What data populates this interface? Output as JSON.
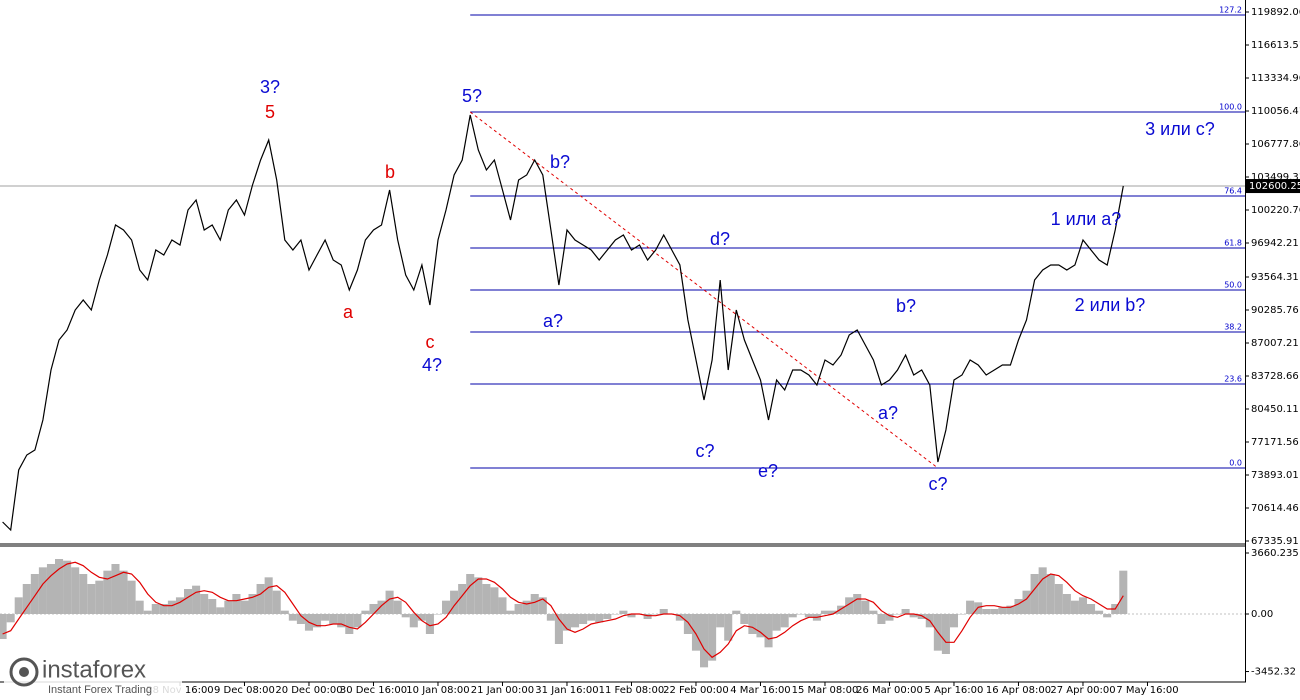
{
  "chart_data": [
    {
      "type": "line",
      "categories": [
        null,
        null,
        null,
        null,
        null,
        null,
        null,
        null,
        null,
        null,
        null,
        null,
        null,
        null,
        null,
        null,
        null,
        null,
        null,
        null,
        null,
        null,
        "28 Nov 16:00",
        null,
        null,
        null,
        null,
        null,
        null,
        null,
        "9 Dec 08:00",
        null,
        null,
        null,
        null,
        null,
        null,
        null,
        "20 Dec 00:00",
        null,
        null,
        null,
        null,
        null,
        null,
        null,
        "30 Dec 16:00",
        null,
        null,
        null,
        null,
        null,
        null,
        null,
        "10 Jan 08:00",
        null,
        null,
        null,
        null,
        null,
        null,
        null,
        "21 Jan 00:00",
        null,
        null,
        null,
        null,
        null,
        null,
        null,
        "31 Jan 16:00",
        null,
        null,
        null,
        null,
        null,
        null,
        null,
        "11 Feb 08:00",
        null,
        null,
        null,
        null,
        null,
        null,
        null,
        "22 Feb 00:00",
        null,
        null,
        null,
        null,
        null,
        null,
        null,
        "4 Mar 16:00",
        null,
        null,
        null,
        null,
        null,
        null,
        null,
        "15 Mar 08:00",
        null,
        null,
        null,
        null,
        null,
        null,
        null,
        "26 Mar 00:00",
        null,
        null,
        null,
        null,
        null,
        null,
        null,
        "5 Apr 16:00",
        null,
        null,
        null,
        null,
        null,
        null,
        null,
        "16 Apr 08:00",
        null,
        null,
        null,
        null,
        null,
        null,
        null,
        "27 Apr 00:00",
        null,
        null,
        null,
        null,
        null,
        null,
        null,
        "7 May 16:00",
        null,
        null,
        null,
        null,
        null,
        null,
        null
      ],
      "series": [
        {
          "color": "#000000",
          "values": [
            69223,
            68429,
            74390,
            75879,
            76376,
            79357,
            84324,
            87305,
            88298,
            90285,
            91279,
            90285,
            93266,
            95750,
            98730,
            98233,
            97240,
            94259,
            93266,
            96246,
            95750,
            97240,
            96743,
            100220,
            101214,
            98233,
            98730,
            97240,
            100220,
            101214,
            99724,
            102704,
            105188,
            107175,
            103201,
            97240,
            96246,
            97240,
            94259,
            95750,
            97240,
            95253,
            94756,
            92272,
            94259,
            97240,
            98233,
            98730,
            102207,
            97240,
            93763,
            92272,
            94756,
            90782,
            97240,
            100220,
            103698,
            105188,
            109659,
            106181,
            104194,
            105188,
            102207,
            99227,
            103201,
            103698,
            105188,
            103698,
            98233,
            92769,
            98233,
            97240,
            96743,
            96246,
            95253,
            96246,
            97240,
            97737,
            96246,
            96743,
            95253,
            96246,
            97737,
            96246,
            94756,
            89292,
            85318,
            81344,
            85318,
            93266,
            84324,
            90285,
            87305,
            85318,
            83331,
            79357,
            83331,
            82337,
            84324,
            84324,
            83828,
            82834,
            85318,
            84821,
            85815,
            87802,
            88298,
            86808,
            85318,
            82834,
            83331,
            84324,
            85815,
            83828,
            84324,
            82834,
            75181,
            78363,
            83331,
            83828,
            85318,
            84821,
            83828,
            84324,
            84821,
            84821,
            87305,
            89292,
            93266,
            94259,
            94756,
            94756,
            94259,
            94756,
            97240,
            96246,
            95253,
            94756,
            98233,
            102600.25,
            null,
            null,
            null,
            null,
            null,
            null,
            null,
            null,
            null,
            null
          ]
        }
      ],
      "ylim": [
        67137,
        121084
      ],
      "yticks": [
        119892.06,
        116613.51,
        113334.96,
        110056.41,
        106777.86,
        103499.31,
        100220.76,
        96942.21,
        93564.31,
        90285.76,
        87007.21,
        83728.66,
        80450.11,
        77171.56,
        73893.01,
        70614.46,
        67335.91
      ],
      "current_price": 102600.25,
      "fib_levels": [
        {
          "label": "127.2",
          "price": 119594
        },
        {
          "label": "100.0",
          "price": 109957
        },
        {
          "label": "76.4",
          "price": 101610
        },
        {
          "label": "61.8",
          "price": 96444
        },
        {
          "label": "50.0",
          "price": 92272
        },
        {
          "label": "38.2",
          "price": 88099
        },
        {
          "label": "23.6",
          "price": 82933
        },
        {
          "label": "0.0",
          "price": 74588
        }
      ],
      "annotations": [
        {
          "text": "3?",
          "color": "#0a0ad2"
        },
        {
          "text": "5",
          "color": "#e00000"
        },
        {
          "text": "b",
          "color": "#e00000"
        },
        {
          "text": "a",
          "color": "#e00000"
        },
        {
          "text": "c",
          "color": "#e00000"
        },
        {
          "text": "4?",
          "color": "#0a0ad2"
        },
        {
          "text": "5?",
          "color": "#0a0ad2"
        },
        {
          "text": "b?",
          "color": "#0a0ad2"
        },
        {
          "text": "a?",
          "color": "#0a0ad2"
        },
        {
          "text": "d?",
          "color": "#0a0ad2"
        },
        {
          "text": "c?",
          "color": "#0a0ad2"
        },
        {
          "text": "e?",
          "color": "#0a0ad2"
        },
        {
          "text": "b?",
          "color": "#0a0ad2"
        },
        {
          "text": "a?",
          "color": "#0a0ad2"
        },
        {
          "text": "c?",
          "color": "#0a0ad2"
        },
        {
          "text": "1 или a?",
          "color": "#0a0ad2"
        },
        {
          "text": "2 или b?",
          "color": "#0a0ad2"
        },
        {
          "text": "3 или c?",
          "color": "#0a0ad2"
        }
      ]
    },
    {
      "type": "bar",
      "series": [
        {
          "color": "#b4b4b4",
          "values": [
            -1500,
            -500,
            1000,
            1800,
            2400,
            2800,
            3000,
            3300,
            3200,
            2800,
            2400,
            1800,
            2000,
            2600,
            3000,
            2600,
            2000,
            800,
            200,
            600,
            600,
            800,
            1000,
            1500,
            1700,
            1200,
            900,
            400,
            800,
            1200,
            800,
            1200,
            1800,
            2200,
            1400,
            200,
            -400,
            -600,
            -1000,
            -800,
            -400,
            -600,
            -800,
            -1200,
            -800,
            200,
            600,
            800,
            1400,
            800,
            -200,
            -800,
            -400,
            -1200,
            0,
            800,
            1400,
            1800,
            2400,
            2200,
            1800,
            1600,
            1000,
            200,
            600,
            800,
            1200,
            1000,
            -400,
            -1800,
            -1000,
            -800,
            -600,
            -400,
            -500,
            -300,
            0,
            200,
            -200,
            0,
            -300,
            0,
            300,
            0,
            -400,
            -1200,
            -2200,
            -3200,
            -2800,
            -800,
            -1600,
            200,
            -600,
            -1200,
            -1400,
            -2000,
            -1000,
            -800,
            -200,
            0,
            -200,
            -400,
            200,
            200,
            500,
            1000,
            1200,
            800,
            200,
            -600,
            -400,
            0,
            300,
            -200,
            -300,
            -800,
            -2200,
            -2400,
            -800,
            0,
            800,
            700,
            300,
            300,
            400,
            500,
            900,
            1400,
            2400,
            2800,
            2400,
            1800,
            1200,
            800,
            1000,
            600,
            200,
            -200,
            600,
            2600,
            null,
            null,
            null,
            null,
            null,
            null,
            null,
            null,
            null,
            null
          ]
        },
        {
          "color": "#e00000",
          "values": [
            -1200,
            -1000,
            -300,
            400,
            1100,
            1800,
            2300,
            2700,
            3000,
            3100,
            2900,
            2500,
            2200,
            2100,
            2300,
            2500,
            2400,
            1900,
            1200,
            700,
            500,
            500,
            700,
            1000,
            1300,
            1400,
            1300,
            1000,
            800,
            800,
            900,
            1000,
            1200,
            1600,
            1700,
            1300,
            600,
            -100,
            -500,
            -700,
            -700,
            -600,
            -600,
            -800,
            -900,
            -500,
            0,
            500,
            900,
            1000,
            700,
            100,
            -400,
            -700,
            -600,
            -200,
            500,
            1100,
            1700,
            2100,
            2100,
            1900,
            1500,
            1000,
            700,
            600,
            700,
            900,
            500,
            -300,
            -900,
            -1100,
            -900,
            -600,
            -500,
            -400,
            -300,
            -100,
            0,
            0,
            -100,
            -100,
            0,
            0,
            -100,
            -500,
            -1200,
            -2100,
            -2600,
            -2300,
            -1800,
            -1000,
            -700,
            -800,
            -1100,
            -1500,
            -1400,
            -1100,
            -700,
            -400,
            -200,
            -200,
            -100,
            0,
            300,
            600,
            900,
            900,
            700,
            200,
            -100,
            -200,
            0,
            0,
            -100,
            -400,
            -1100,
            -1700,
            -1700,
            -1000,
            -200,
            400,
            500,
            500,
            400,
            400,
            600,
            900,
            1500,
            2100,
            2400,
            2300,
            1900,
            1400,
            1100,
            900,
            600,
            300,
            300,
            1100,
            null,
            null,
            null,
            null,
            null,
            null,
            null,
            null,
            null,
            null
          ]
        }
      ],
      "ylim": [
        -4020,
        4080
      ],
      "yticks": [
        3660.235,
        {
          "value": 0,
          "label": "0.00"
        },
        -3452.32
      ]
    }
  ],
  "watermark": {
    "brand": "instaforex",
    "tagline": "Instant Forex Trading"
  }
}
